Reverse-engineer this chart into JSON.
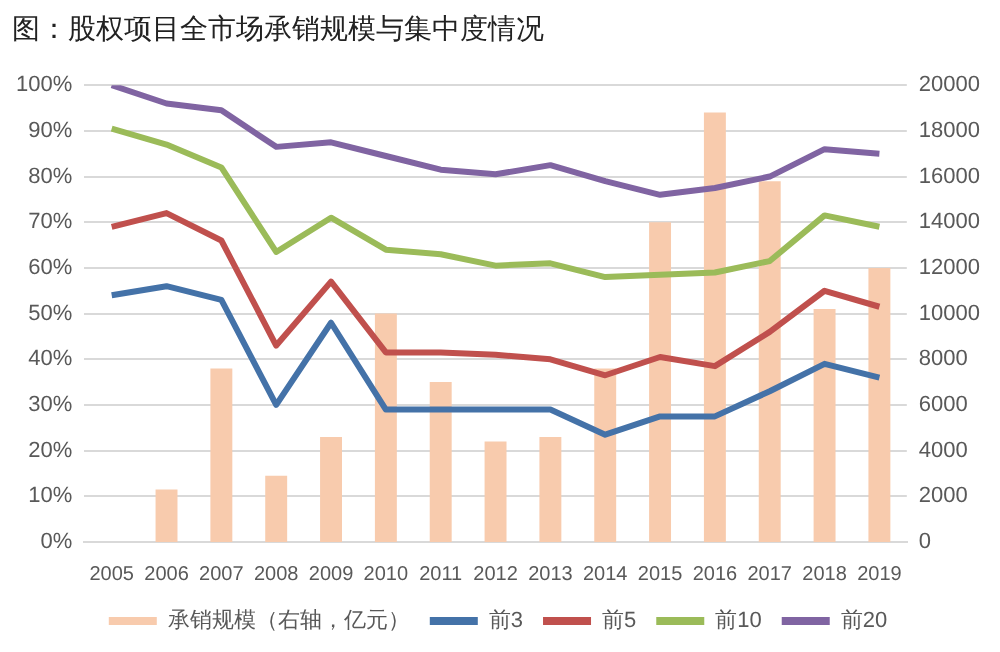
{
  "chart_data": {
    "type": "bar",
    "title": "图：股权项目全市场承销规模与集中度情况",
    "categories": [
      "2005",
      "2006",
      "2007",
      "2008",
      "2009",
      "2010",
      "2011",
      "2012",
      "2013",
      "2014",
      "2015",
      "2016",
      "2017",
      "2018",
      "2019"
    ],
    "series": [
      {
        "name": "承销规模（右轴，亿元）",
        "axis": "y2",
        "color": "#f8cbad",
        "values": [
          null,
          2300,
          7600,
          2900,
          4600,
          10000,
          7000,
          4400,
          4600,
          7600,
          14000,
          18800,
          15800,
          10200,
          12000
        ]
      },
      {
        "name": "前3",
        "type": "line",
        "color": "#4472a8",
        "values": [
          54,
          56,
          53,
          30,
          48,
          29,
          29,
          29,
          29,
          23.5,
          27.5,
          27.5,
          33,
          39,
          36
        ]
      },
      {
        "name": "前5",
        "type": "line",
        "color": "#c0504d",
        "values": [
          69,
          72,
          66,
          43,
          57,
          41.5,
          41.5,
          41,
          40,
          36.5,
          40.5,
          38.5,
          46,
          55,
          51.5
        ]
      },
      {
        "name": "前10",
        "type": "line",
        "color": "#9bbb59",
        "values": [
          90.5,
          87,
          82,
          63.5,
          71,
          64,
          63,
          60.5,
          61,
          58,
          58.5,
          59,
          61.5,
          71.5,
          69
        ]
      },
      {
        "name": "前20",
        "type": "line",
        "color": "#8064a2",
        "values": [
          100,
          96,
          94.5,
          86.5,
          87.5,
          84.5,
          81.5,
          80.5,
          82.5,
          79,
          76,
          77.5,
          80,
          86,
          85
        ]
      }
    ],
    "ylim": [
      0,
      100
    ],
    "yticks": [
      {
        "value": 0,
        "label": "0%"
      },
      {
        "value": 10,
        "label": "10%"
      },
      {
        "value": 20,
        "label": "20%"
      },
      {
        "value": 30,
        "label": "30%"
      },
      {
        "value": 40,
        "label": "40%"
      },
      {
        "value": 50,
        "label": "50%"
      },
      {
        "value": 60,
        "label": "60%"
      },
      {
        "value": 70,
        "label": "70%"
      },
      {
        "value": 80,
        "label": "80%"
      },
      {
        "value": 90,
        "label": "90%"
      },
      {
        "value": 100,
        "label": "100%"
      }
    ],
    "y2lim": [
      0,
      20000
    ],
    "y2ticks": [
      0,
      2000,
      4000,
      6000,
      8000,
      10000,
      12000,
      14000,
      16000,
      18000,
      20000
    ],
    "grid": "y",
    "legend": "bottom",
    "marker": "none"
  }
}
